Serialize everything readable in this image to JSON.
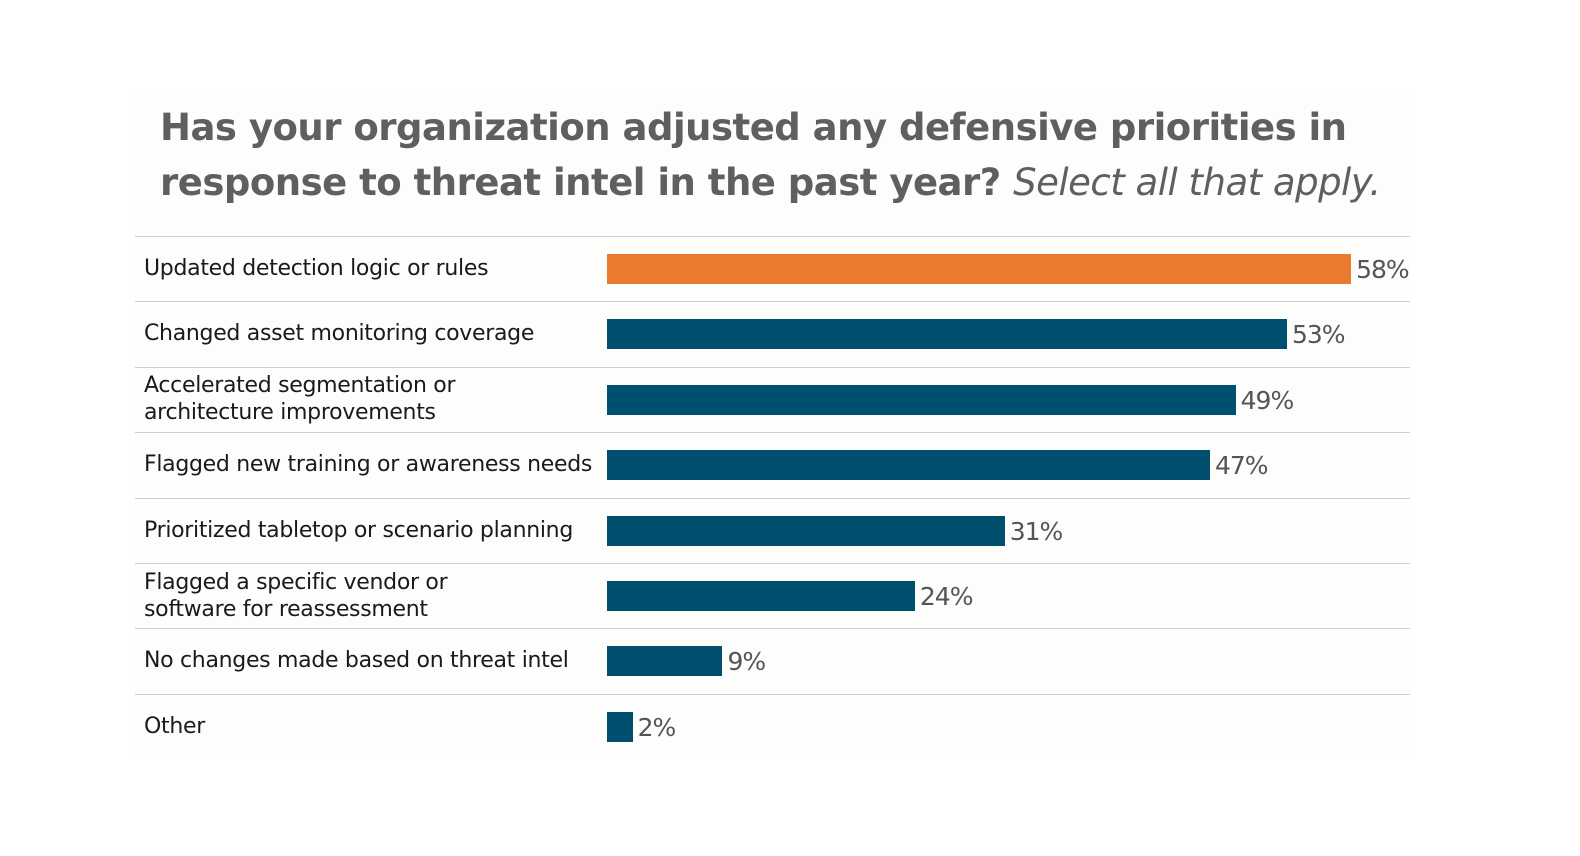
{
  "chart_data": {
    "type": "bar",
    "orientation": "horizontal",
    "title": "Has your organization adjusted any defensive priorities in response to threat intel in the past year?",
    "subtitle": "Select all that apply.",
    "categories": [
      "Updated detection logic or rules",
      "Changed asset monitoring coverage",
      "Accelerated segmentation or\narchitecture improvements",
      "Flagged new training or awareness needs",
      "Prioritized tabletop or scenario planning",
      "Flagged a specific vendor or\nsoftware for reassessment",
      "No changes made based on threat intel",
      "Other"
    ],
    "values": [
      58,
      53,
      49,
      47,
      31,
      24,
      9,
      2
    ],
    "value_labels": [
      "58%",
      "53%",
      "49%",
      "47%",
      "31%",
      "24%",
      "9%",
      "2%"
    ],
    "colors": [
      "#e87b2e",
      "#004f6f",
      "#004f6f",
      "#004f6f",
      "#004f6f",
      "#004f6f",
      "#004f6f",
      "#004f6f"
    ]
  }
}
